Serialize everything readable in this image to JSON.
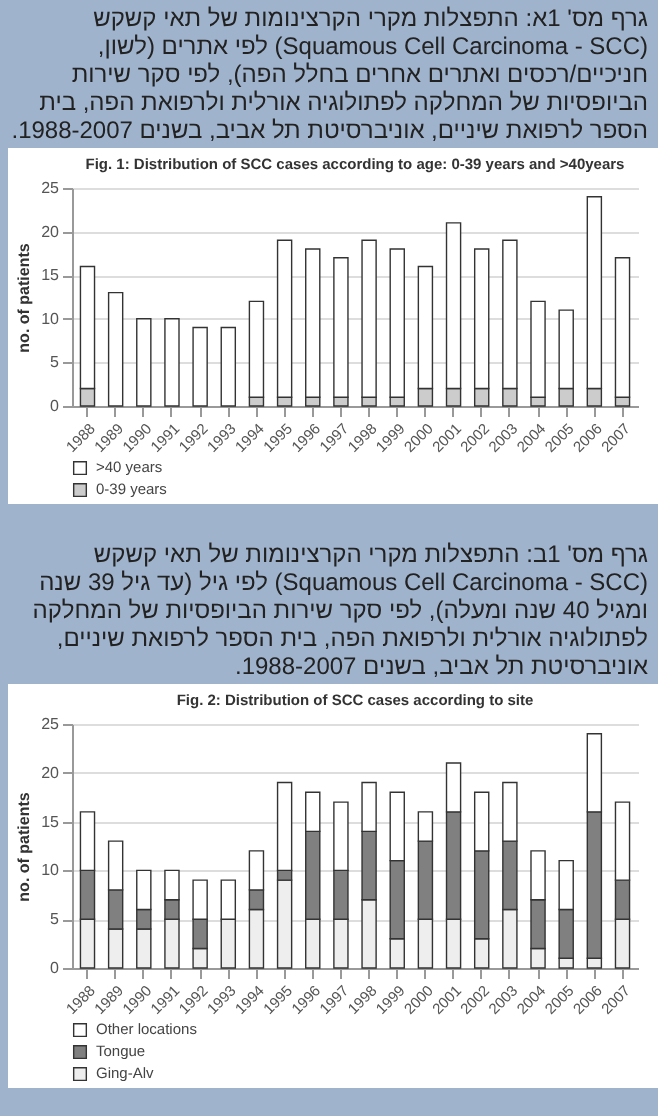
{
  "chart_data": [
    {
      "type": "bar",
      "stacked": true,
      "title": "Fig. 1: Distribution of SCC cases according to age: 0-39 years and >40years",
      "ylabel": "no. of patients",
      "annotations": [
        "גרף מס' 1א: התפצלות מקרי הקרצינומות של תאי קשקש (Squamous Cell Carcinoma - SCC) לפי אתרים (לשון, חניכיים/רכסים ואתרים אחרים בחלל הפה), לפי סקר שירות הביופסיות של המחלקה לפתולוגיה אורלית ולרפואת הפה, בית הספר לרפואת שיניים, אוניברסיטת תל אביב, בשנים 1988-2007."
      ],
      "categories": [
        "1988",
        "1989",
        "1990",
        "1991",
        "1992",
        "1993",
        "1994",
        "1995",
        "1996",
        "1997",
        "1998",
        "1999",
        "2000",
        "2001",
        "2002",
        "2003",
        "2004",
        "2005",
        "2006",
        "2007"
      ],
      "series": [
        {
          "name": "0-39 years",
          "color": "#cccccc",
          "values": [
            2,
            0,
            0,
            0,
            0,
            0,
            1,
            1,
            1,
            1,
            1,
            1,
            2,
            2,
            2,
            2,
            1,
            2,
            2,
            1
          ]
        },
        {
          "name": ">40 years",
          "color": "#ffffff",
          "values": [
            14,
            13,
            10,
            10,
            9,
            9,
            11,
            18,
            17,
            16,
            18,
            17,
            14,
            19,
            16,
            17,
            11,
            9,
            22,
            16
          ]
        }
      ],
      "ylim": [
        0,
        25
      ],
      "yticks": [
        0,
        5,
        10,
        15,
        20,
        25
      ],
      "grid": "y",
      "legend": "bottom left"
    },
    {
      "type": "bar",
      "stacked": true,
      "title": "Fig. 2: Distribution of SCC cases according to site",
      "ylabel": "no. of patients",
      "annotations": [
        "גרף מס' 1ב: התפצלות מקרי הקרצינומות של תאי קשקש (Squamous Cell Carcinoma - SCC) לפי גיל (עד גיל 39 שנה ומגיל 40 שנה ומעלה), לפי סקר שירות הביופסיות של המחלקה לפתולוגיה אורלית ולרפואת הפה, בית הספר לרפואת שיניים, אוניברסיטת תל אביב, בשנים 1988-2007."
      ],
      "categories": [
        "1988",
        "1989",
        "1990",
        "1991",
        "1992",
        "1993",
        "1994",
        "1995",
        "1996",
        "1997",
        "1998",
        "1999",
        "2000",
        "2001",
        "2002",
        "2003",
        "2004",
        "2005",
        "2006",
        "2007"
      ],
      "series": [
        {
          "name": "Ging-Alv",
          "color": "#eeeeee",
          "values": [
            5,
            4,
            4,
            5,
            2,
            5,
            6,
            9,
            5,
            5,
            7,
            3,
            5,
            5,
            3,
            6,
            2,
            1,
            1,
            5
          ]
        },
        {
          "name": "Tongue",
          "color": "#808080",
          "values": [
            5,
            4,
            2,
            2,
            3,
            0,
            2,
            1,
            9,
            5,
            7,
            8,
            8,
            11,
            9,
            7,
            5,
            5,
            15,
            4
          ]
        },
        {
          "name": "Other locations",
          "color": "#ffffff",
          "values": [
            6,
            5,
            4,
            3,
            4,
            4,
            4,
            9,
            4,
            7,
            5,
            7,
            3,
            5,
            6,
            6,
            5,
            5,
            8,
            8
          ]
        }
      ],
      "ylim": [
        0,
        25
      ],
      "yticks": [
        0,
        5,
        10,
        15,
        20,
        25
      ],
      "grid": "y",
      "legend": "bottom left"
    }
  ]
}
